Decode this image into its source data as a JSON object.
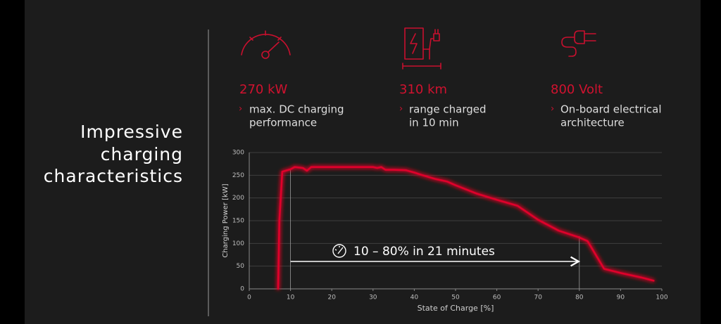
{
  "title_lines": [
    "Impressive",
    "charging",
    "characteristics"
  ],
  "kpis": [
    {
      "value": "270 kW",
      "lines": [
        "max. DC charging",
        "performance"
      ]
    },
    {
      "value": "310 km",
      "lines": [
        "range charged",
        "in 10 min"
      ]
    },
    {
      "value": "800 Volt",
      "lines": [
        "On-board electrical",
        "architecture"
      ]
    }
  ],
  "chart_data": {
    "type": "line",
    "xlabel": "State of Charge [%]",
    "ylabel": "Charging Power [kW]",
    "x": [
      7,
      7.3,
      8,
      10,
      11,
      13,
      14,
      15,
      20,
      25,
      30,
      31,
      32,
      33,
      35,
      38,
      40,
      42,
      45,
      48,
      50,
      55,
      60,
      65,
      70,
      75,
      80,
      82,
      86,
      90,
      95,
      98
    ],
    "values": [
      0,
      150,
      258,
      263,
      268,
      266,
      260,
      268,
      268,
      268,
      268,
      266,
      268,
      262,
      262,
      261,
      256,
      250,
      242,
      236,
      228,
      210,
      196,
      183,
      152,
      128,
      113,
      105,
      44,
      35,
      25,
      18
    ],
    "color": "#e0002a",
    "xlim": [
      0,
      100
    ],
    "ylim": [
      0,
      300
    ],
    "xticks": [
      0,
      10,
      20,
      30,
      40,
      50,
      60,
      70,
      80,
      90,
      100
    ],
    "yticks": [
      0,
      50,
      100,
      150,
      200,
      250,
      300
    ],
    "grid": true,
    "highlight": {
      "from": 10,
      "to": 80,
      "label": "10 – 80% in 21 minutes"
    }
  }
}
